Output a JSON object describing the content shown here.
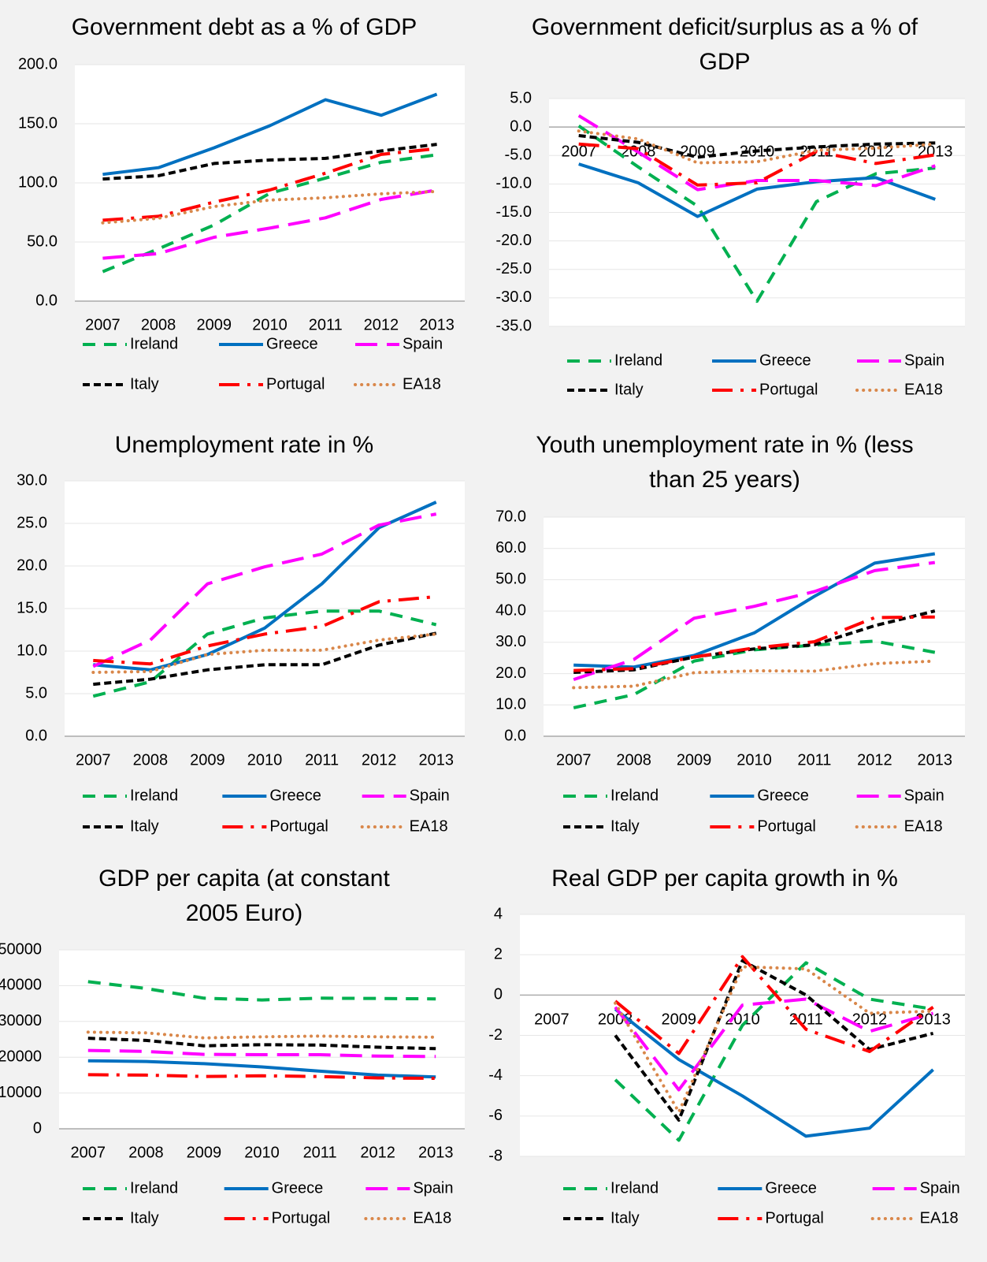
{
  "chart_data": [
    {
      "type": "line",
      "title": "Government debt as a % of GDP",
      "categories": [
        "2007",
        "2008",
        "2009",
        "2010",
        "2011",
        "2012",
        "2013"
      ],
      "ylim": [
        0,
        200
      ],
      "yticks": [
        {
          "value": 0,
          "label": "0.0"
        },
        {
          "value": 50,
          "label": "50.0"
        },
        {
          "value": 100,
          "label": "100.0"
        },
        {
          "value": 150,
          "label": "150.0"
        },
        {
          "value": 200,
          "label": "200.0"
        }
      ],
      "grid": true,
      "series": [
        {
          "name": "Ireland",
          "color": "#00b050",
          "style": "dash",
          "values": [
            24.9,
            44.2,
            64.4,
            91.2,
            104.1,
            117.4,
            123.7
          ]
        },
        {
          "name": "Greece",
          "color": "#0070c0",
          "style": "solid",
          "values": [
            107.2,
            112.9,
            129.7,
            148.3,
            170.3,
            157.2,
            175.0
          ]
        },
        {
          "name": "Spain",
          "color": "#ff00ff",
          "style": "longdash",
          "values": [
            36.3,
            40.2,
            54.0,
            61.7,
            70.5,
            86.0,
            93.9
          ]
        },
        {
          "name": "Italy",
          "color": "#000000",
          "style": "shortdash",
          "values": [
            103.3,
            106.1,
            116.4,
            119.3,
            120.7,
            127.0,
            132.6
          ]
        },
        {
          "name": "Portugal",
          "color": "#ff0000",
          "style": "dashdot",
          "values": [
            68.4,
            71.7,
            83.7,
            94.0,
            108.2,
            124.1,
            129.0
          ]
        },
        {
          "name": "EA18",
          "color": "#d9874a",
          "style": "dot",
          "values": [
            66.2,
            70.1,
            80.0,
            85.5,
            87.4,
            90.7,
            92.7
          ]
        }
      ]
    },
    {
      "type": "line",
      "title": "Government deficit/surplus as a % of GDP",
      "categories": [
        "2007",
        "2008",
        "2009",
        "2010",
        "2011",
        "2012",
        "2013"
      ],
      "ylim": [
        -35,
        5
      ],
      "yticks": [
        {
          "value": -35,
          "label": "-35.0"
        },
        {
          "value": -30,
          "label": "-30.0"
        },
        {
          "value": -25,
          "label": "-25.0"
        },
        {
          "value": -20,
          "label": "-20.0"
        },
        {
          "value": -15,
          "label": "-15.0"
        },
        {
          "value": -10,
          "label": "-10.0"
        },
        {
          "value": -5,
          "label": "-5.0"
        },
        {
          "value": 0,
          "label": "0.0"
        },
        {
          "value": 5,
          "label": "5.0"
        }
      ],
      "grid": true,
      "series": [
        {
          "name": "Ireland",
          "color": "#00b050",
          "style": "dash",
          "values": [
            0.2,
            -7.0,
            -13.9,
            -30.6,
            -13.1,
            -8.2,
            -7.2
          ]
        },
        {
          "name": "Greece",
          "color": "#0070c0",
          "style": "solid",
          "values": [
            -6.5,
            -9.8,
            -15.7,
            -10.9,
            -9.6,
            -8.9,
            -12.7
          ]
        },
        {
          "name": "Spain",
          "color": "#ff00ff",
          "style": "longdash",
          "values": [
            2.0,
            -4.4,
            -11.0,
            -9.4,
            -9.4,
            -10.3,
            -6.8
          ]
        },
        {
          "name": "Italy",
          "color": "#000000",
          "style": "shortdash",
          "values": [
            -1.5,
            -2.7,
            -5.3,
            -4.2,
            -3.5,
            -3.0,
            -2.8
          ]
        },
        {
          "name": "Portugal",
          "color": "#ff0000",
          "style": "dashdot",
          "values": [
            -3.0,
            -3.8,
            -10.2,
            -9.8,
            -4.3,
            -6.4,
            -4.9
          ]
        },
        {
          "name": "EA18",
          "color": "#d9874a",
          "style": "dot",
          "values": [
            -0.7,
            -2.1,
            -6.3,
            -6.1,
            -4.1,
            -3.7,
            -3.0
          ]
        }
      ]
    },
    {
      "type": "line",
      "title": "Unemployment rate in %",
      "categories": [
        "2007",
        "2008",
        "2009",
        "2010",
        "2011",
        "2012",
        "2013"
      ],
      "ylim": [
        0,
        30
      ],
      "yticks": [
        {
          "value": 0,
          "label": "0.0"
        },
        {
          "value": 5,
          "label": "5.0"
        },
        {
          "value": 10,
          "label": "10.0"
        },
        {
          "value": 15,
          "label": "15.0"
        },
        {
          "value": 20,
          "label": "20.0"
        },
        {
          "value": 25,
          "label": "25.0"
        },
        {
          "value": 30,
          "label": "30.0"
        }
      ],
      "grid": true,
      "series": [
        {
          "name": "Ireland",
          "color": "#00b050",
          "style": "dash",
          "values": [
            4.7,
            6.4,
            12.0,
            13.9,
            14.7,
            14.7,
            13.1
          ]
        },
        {
          "name": "Greece",
          "color": "#0070c0",
          "style": "solid",
          "values": [
            8.4,
            7.8,
            9.6,
            12.7,
            17.9,
            24.5,
            27.5
          ]
        },
        {
          "name": "Spain",
          "color": "#ff00ff",
          "style": "longdash",
          "values": [
            8.2,
            11.3,
            17.9,
            19.9,
            21.4,
            24.8,
            26.1
          ]
        },
        {
          "name": "Italy",
          "color": "#000000",
          "style": "shortdash",
          "values": [
            6.1,
            6.7,
            7.8,
            8.4,
            8.4,
            10.7,
            12.1
          ]
        },
        {
          "name": "Portugal",
          "color": "#ff0000",
          "style": "dashdot",
          "values": [
            8.9,
            8.5,
            10.6,
            12.0,
            12.9,
            15.8,
            16.4
          ]
        },
        {
          "name": "EA18",
          "color": "#d9874a",
          "style": "dot",
          "values": [
            7.5,
            7.6,
            9.6,
            10.1,
            10.1,
            11.3,
            12.0
          ]
        }
      ]
    },
    {
      "type": "line",
      "title": "Youth unemployment rate in % (less than 25 years)",
      "categories": [
        "2007",
        "2008",
        "2009",
        "2010",
        "2011",
        "2012",
        "2013"
      ],
      "ylim": [
        0,
        70
      ],
      "yticks": [
        {
          "value": 0,
          "label": "0.0"
        },
        {
          "value": 10,
          "label": "10.0"
        },
        {
          "value": 20,
          "label": "20.0"
        },
        {
          "value": 30,
          "label": "30.0"
        },
        {
          "value": 40,
          "label": "40.0"
        },
        {
          "value": 50,
          "label": "50.0"
        },
        {
          "value": 60,
          "label": "60.0"
        },
        {
          "value": 70,
          "label": "70.0"
        }
      ],
      "grid": true,
      "series": [
        {
          "name": "Ireland",
          "color": "#00b050",
          "style": "dash",
          "values": [
            9.1,
            13.3,
            24.0,
            27.6,
            29.1,
            30.4,
            26.8
          ]
        },
        {
          "name": "Greece",
          "color": "#0070c0",
          "style": "solid",
          "values": [
            22.7,
            22.1,
            25.8,
            33.0,
            44.7,
            55.3,
            58.3
          ]
        },
        {
          "name": "Spain",
          "color": "#ff00ff",
          "style": "longdash",
          "values": [
            18.1,
            24.5,
            37.7,
            41.5,
            46.2,
            52.9,
            55.5
          ]
        },
        {
          "name": "Italy",
          "color": "#000000",
          "style": "shortdash",
          "values": [
            20.4,
            21.2,
            25.3,
            27.9,
            29.2,
            35.3,
            40.0
          ]
        },
        {
          "name": "Portugal",
          "color": "#ff0000",
          "style": "dashdot",
          "values": [
            21.0,
            21.6,
            25.3,
            28.2,
            30.2,
            37.9,
            38.1
          ]
        },
        {
          "name": "EA18",
          "color": "#d9874a",
          "style": "dot",
          "values": [
            15.5,
            16.0,
            20.3,
            20.9,
            20.8,
            23.2,
            24.0
          ]
        }
      ]
    },
    {
      "type": "line",
      "title": "GDP per capita (at constant 2005 Euro)",
      "categories": [
        "2007",
        "2008",
        "2009",
        "2010",
        "2011",
        "2012",
        "2013"
      ],
      "ylim": [
        0,
        50000
      ],
      "yticks": [
        0,
        10000,
        20000,
        30000,
        40000,
        50000
      ],
      "grid": true,
      "series": [
        {
          "name": "Ireland",
          "color": "#00b050",
          "style": "dash",
          "values": [
            41100,
            39200,
            36500,
            36000,
            36500,
            36400,
            36300
          ]
        },
        {
          "name": "Greece",
          "color": "#0070c0",
          "style": "solid",
          "values": [
            19000,
            18800,
            18200,
            17300,
            16100,
            15000,
            14500
          ]
        },
        {
          "name": "Spain",
          "color": "#ff00ff",
          "style": "longdash",
          "values": [
            21900,
            21600,
            20800,
            20700,
            20700,
            20300,
            20200
          ]
        },
        {
          "name": "Italy",
          "color": "#000000",
          "style": "shortdash",
          "values": [
            25300,
            24700,
            23200,
            23500,
            23400,
            22800,
            22400
          ]
        },
        {
          "name": "Portugal",
          "color": "#ff0000",
          "style": "dashdot",
          "values": [
            15100,
            15000,
            14600,
            14800,
            14600,
            14200,
            14100
          ]
        },
        {
          "name": "EA18",
          "color": "#d9874a",
          "style": "dot",
          "values": [
            27000,
            26800,
            25400,
            25700,
            25900,
            25700,
            25600
          ]
        }
      ]
    },
    {
      "type": "line",
      "title": "Real GDP per capita growth in %",
      "categories": [
        "2007",
        "2008",
        "2009",
        "2010",
        "2011",
        "2012",
        "2013"
      ],
      "ylim": [
        -8,
        4
      ],
      "yticks": [
        -8,
        -6,
        -4,
        -2,
        0,
        2,
        4
      ],
      "grid": true,
      "series": [
        {
          "name": "Ireland",
          "color": "#00b050",
          "style": "dash",
          "values": [
            null,
            -4.2,
            -7.2,
            -1.5,
            1.6,
            -0.2,
            -0.7
          ]
        },
        {
          "name": "Greece",
          "color": "#0070c0",
          "style": "solid",
          "values": [
            null,
            -0.7,
            -3.2,
            -5.0,
            -7.0,
            -6.6,
            -3.7
          ]
        },
        {
          "name": "Spain",
          "color": "#ff00ff",
          "style": "longdash",
          "values": [
            null,
            -0.6,
            -4.7,
            -0.5,
            -0.2,
            -1.8,
            -0.9
          ]
        },
        {
          "name": "Italy",
          "color": "#000000",
          "style": "shortdash",
          "values": [
            null,
            -2.0,
            -6.2,
            1.7,
            0.0,
            -2.7,
            -1.9
          ]
        },
        {
          "name": "Portugal",
          "color": "#ff0000",
          "style": "dashdot",
          "values": [
            null,
            -0.3,
            -2.9,
            1.9,
            -1.7,
            -2.8,
            -0.6
          ]
        },
        {
          "name": "EA18",
          "color": "#d9874a",
          "style": "dot",
          "values": [
            null,
            -0.4,
            -5.8,
            1.4,
            1.3,
            -0.9,
            -0.8
          ]
        }
      ]
    }
  ]
}
